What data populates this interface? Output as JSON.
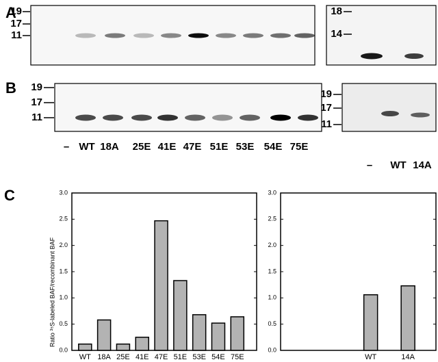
{
  "panels": [
    "A",
    "B",
    "C"
  ],
  "gel_a": {
    "markers": [
      19,
      17,
      11
    ]
  },
  "gel_a_right": {
    "markers": [
      18,
      14
    ]
  },
  "gel_b": {
    "markers": [
      19,
      17,
      11
    ],
    "lanes": [
      "–",
      "WT",
      "18A",
      "25E",
      "41E",
      "47E",
      "51E",
      "53E",
      "54E",
      "75E"
    ]
  },
  "gel_b_right": {
    "markers": [
      19,
      17,
      11
    ],
    "lanes": [
      "–",
      "WT",
      "14A"
    ]
  },
  "chart_data": [
    {
      "type": "bar",
      "y_label": "Ratio ³⁵S-labeled BAF/recombinant BAF",
      "categories": [
        "WT",
        "18A",
        "25E",
        "41E",
        "47E",
        "51E",
        "53E",
        "54E",
        "75E"
      ],
      "values": [
        0.12,
        0.58,
        0.12,
        0.25,
        2.47,
        1.33,
        0.68,
        0.52,
        0.64
      ],
      "color": "#b3b3b3",
      "ylim": [
        0,
        3
      ],
      "yticks": [
        {
          "value": 0,
          "label": "0.0"
        },
        {
          "value": 0.5,
          "label": "0.5"
        },
        {
          "value": 1,
          "label": "1.0"
        },
        {
          "value": 1.5,
          "label": "1.5"
        },
        {
          "value": 2,
          "label": "2.0"
        },
        {
          "value": 2.5,
          "label": "2.5"
        },
        {
          "value": 3,
          "label": "3.0"
        }
      ]
    },
    {
      "type": "bar",
      "categories": [
        "WT",
        "14A"
      ],
      "values": [
        1.06,
        1.23
      ],
      "color": "#b3b3b3",
      "ylim": [
        0,
        3
      ],
      "yticks": [
        {
          "value": 0,
          "label": "0.0"
        },
        {
          "value": 0.5,
          "label": "0.5"
        },
        {
          "value": 1,
          "label": "1.0"
        },
        {
          "value": 1.5,
          "label": "1.5"
        },
        {
          "value": 2,
          "label": "2.0"
        },
        {
          "value": 2.5,
          "label": "2.5"
        },
        {
          "value": 3,
          "label": "3.0"
        }
      ]
    }
  ]
}
